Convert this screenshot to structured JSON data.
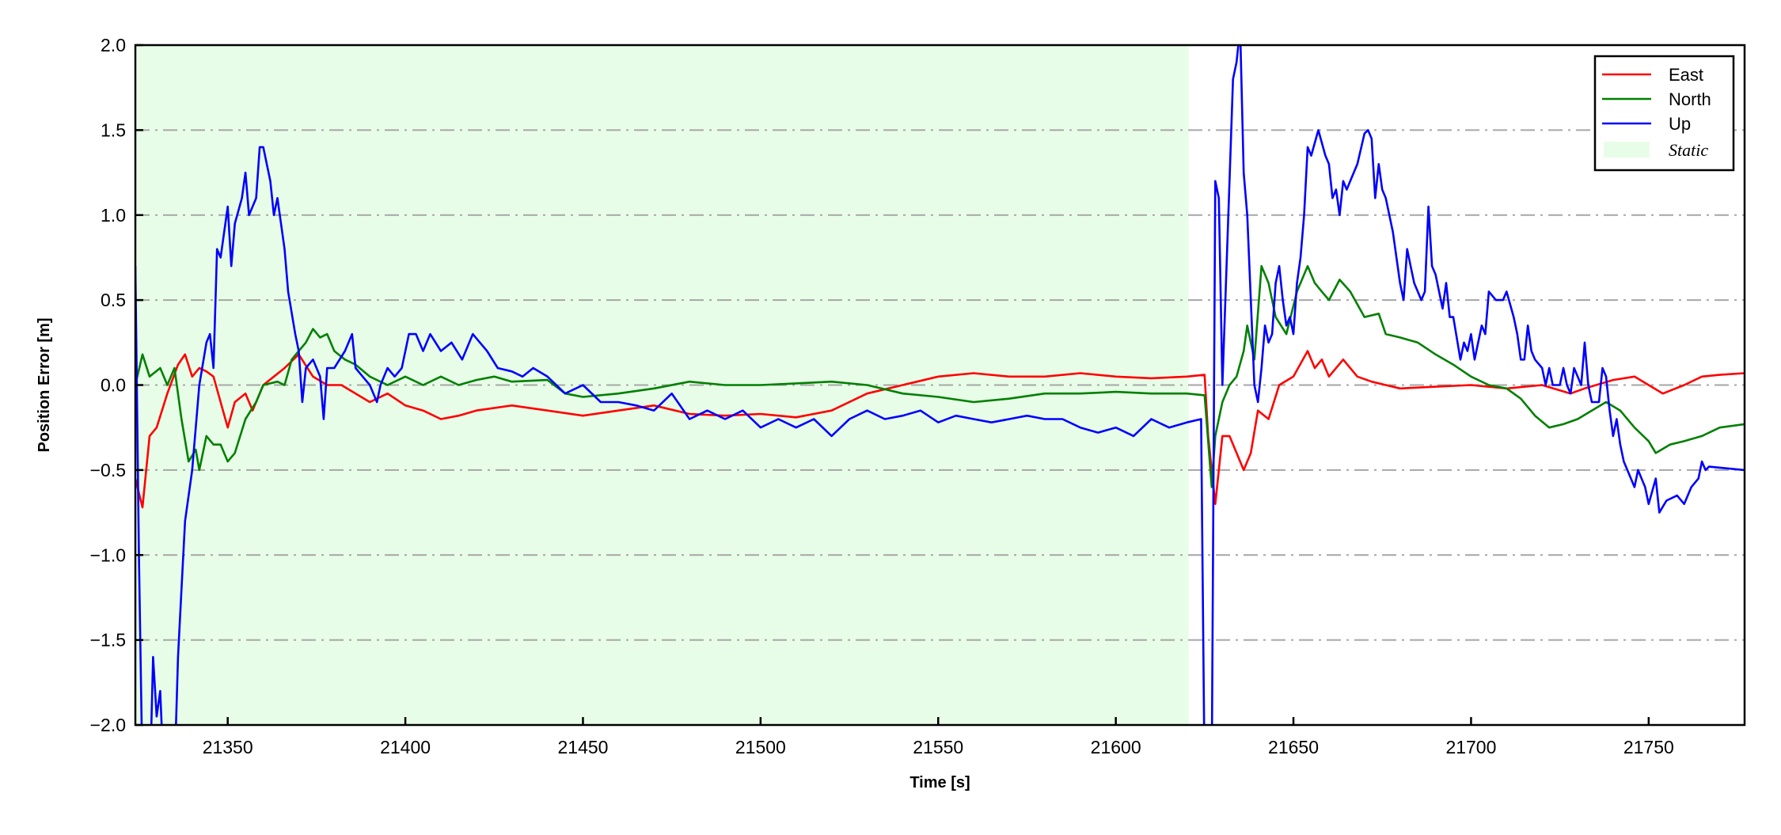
{
  "chart_data": {
    "type": "line",
    "title": "",
    "xlabel": "Time [s]",
    "ylabel": "Position Error [m]",
    "xlim": [
      21324,
      21777
    ],
    "ylim": [
      -2.0,
      2.0
    ],
    "xticks": [
      21350,
      21400,
      21450,
      21500,
      21550,
      21600,
      21650,
      21700,
      21750
    ],
    "yticks": [
      -2.0,
      -1.5,
      -1.0,
      -0.5,
      0.0,
      0.5,
      1.0,
      1.5,
      2.0
    ],
    "ytick_labels": [
      "−2.0",
      "−1.5",
      "−1.0",
      "−0.5",
      "0.0",
      "0.5",
      "1.0",
      "1.5",
      "2.0"
    ],
    "xtick_labels": [
      "21350",
      "21400",
      "21450",
      "21500",
      "21550",
      "21600",
      "21650",
      "21700",
      "21750"
    ],
    "grid": {
      "horizontal": true,
      "vertical": false,
      "style": "dash-dot",
      "color": "#a6a6a6"
    },
    "legend_placement": "top-right",
    "static_region": {
      "label": "Static",
      "x_start": 21324,
      "x_end": 21620.5,
      "color": "#e8fde8"
    },
    "series": [
      {
        "name": "East",
        "color": "#ff0000",
        "x": [
          21324,
          21326,
          21328,
          21330,
          21333,
          21336,
          21338,
          21340,
          21342,
          21344,
          21346,
          21348,
          21350,
          21352,
          21355,
          21357,
          21360,
          21363,
          21366,
          21370,
          21374,
          21378,
          21382,
          21386,
          21390,
          21395,
          21400,
          21405,
          21410,
          21415,
          21420,
          21430,
          21440,
          21450,
          21460,
          21470,
          21480,
          21490,
          21500,
          21510,
          21520,
          21530,
          21540,
          21550,
          21560,
          21570,
          21580,
          21590,
          21600,
          21610,
          21620,
          21625,
          21626,
          21628,
          21630,
          21632,
          21636,
          21638,
          21640,
          21643,
          21646,
          21650,
          21654,
          21656,
          21658,
          21660,
          21664,
          21668,
          21672,
          21676,
          21680,
          21690,
          21700,
          21710,
          21720,
          21728,
          21732,
          21740,
          21746,
          21750,
          21754,
          21760,
          21765,
          21770,
          21777
        ],
        "y": [
          -0.55,
          -0.72,
          -0.3,
          -0.25,
          -0.05,
          0.12,
          0.18,
          0.05,
          0.1,
          0.08,
          0.05,
          -0.1,
          -0.25,
          -0.1,
          -0.05,
          -0.15,
          0.0,
          0.05,
          0.1,
          0.18,
          0.05,
          0.0,
          0.0,
          -0.05,
          -0.1,
          -0.05,
          -0.12,
          -0.15,
          -0.2,
          -0.18,
          -0.15,
          -0.12,
          -0.15,
          -0.18,
          -0.15,
          -0.12,
          -0.17,
          -0.18,
          -0.17,
          -0.19,
          -0.15,
          -0.05,
          0.0,
          0.05,
          0.07,
          0.05,
          0.05,
          0.07,
          0.05,
          0.04,
          0.05,
          0.06,
          -0.3,
          -0.7,
          -0.3,
          -0.3,
          -0.5,
          -0.4,
          -0.15,
          -0.2,
          0.0,
          0.05,
          0.2,
          0.1,
          0.15,
          0.05,
          0.15,
          0.05,
          0.02,
          0.0,
          -0.02,
          -0.01,
          0.0,
          -0.02,
          0.0,
          -0.05,
          -0.02,
          0.03,
          0.05,
          0.0,
          -0.05,
          0.0,
          0.05,
          0.06,
          0.07
        ]
      },
      {
        "name": "North",
        "color": "#008000",
        "x": [
          21324,
          21326,
          21328,
          21331,
          21333,
          21335,
          21337,
          21339,
          21341,
          21342,
          21344,
          21346,
          21348,
          21350,
          21352,
          21355,
          21358,
          21360,
          21364,
          21366,
          21368,
          21370,
          21372,
          21374,
          21376,
          21378,
          21380,
          21383,
          21386,
          21390,
          21395,
          21400,
          21405,
          21410,
          21415,
          21420,
          21425,
          21430,
          21440,
          21445,
          21450,
          21460,
          21470,
          21480,
          21490,
          21500,
          21510,
          21520,
          21530,
          21540,
          21550,
          21560,
          21570,
          21580,
          21590,
          21600,
          21610,
          21620,
          21625,
          21627,
          21628,
          21630,
          21632,
          21634,
          21636,
          21637,
          21639,
          21641,
          21643,
          21645,
          21648,
          21651,
          21654,
          21656,
          21658,
          21660,
          21663,
          21666,
          21670,
          21674,
          21676,
          21680,
          21685,
          21690,
          21695,
          21700,
          21705,
          21710,
          21714,
          21718,
          21722,
          21726,
          21730,
          21734,
          21738,
          21742,
          21746,
          21750,
          21752,
          21756,
          21760,
          21765,
          21770,
          21777
        ],
        "y": [
          0.0,
          0.18,
          0.05,
          0.1,
          0.0,
          0.1,
          -0.2,
          -0.45,
          -0.38,
          -0.5,
          -0.3,
          -0.35,
          -0.35,
          -0.45,
          -0.4,
          -0.2,
          -0.1,
          0.0,
          0.02,
          0.0,
          0.15,
          0.2,
          0.25,
          0.33,
          0.28,
          0.3,
          0.2,
          0.15,
          0.12,
          0.05,
          0.0,
          0.05,
          0.0,
          0.05,
          0.0,
          0.03,
          0.05,
          0.02,
          0.03,
          -0.05,
          -0.07,
          -0.05,
          -0.02,
          0.02,
          0.0,
          0.0,
          0.01,
          0.02,
          0.0,
          -0.05,
          -0.07,
          -0.1,
          -0.08,
          -0.05,
          -0.05,
          -0.04,
          -0.05,
          -0.05,
          -0.06,
          -0.6,
          -0.3,
          -0.1,
          0.0,
          0.05,
          0.2,
          0.35,
          0.15,
          0.7,
          0.6,
          0.4,
          0.3,
          0.55,
          0.7,
          0.6,
          0.55,
          0.5,
          0.62,
          0.55,
          0.4,
          0.42,
          0.3,
          0.28,
          0.25,
          0.18,
          0.12,
          0.05,
          0.0,
          -0.02,
          -0.08,
          -0.18,
          -0.25,
          -0.23,
          -0.2,
          -0.15,
          -0.1,
          -0.15,
          -0.25,
          -0.33,
          -0.4,
          -0.35,
          -0.33,
          -0.3,
          -0.25,
          -0.23
        ]
      },
      {
        "name": "Up",
        "color": "#0000ff",
        "x": [
          21324,
          21325,
          21326,
          21328,
          21329,
          21330,
          21331,
          21332,
          21335,
          21336,
          21337,
          21338,
          21340,
          21342,
          21344,
          21345,
          21346,
          21347,
          21348,
          21350,
          21351,
          21352,
          21354,
          21355,
          21356,
          21358,
          21359,
          21360,
          21362,
          21363,
          21364,
          21366,
          21367,
          21369,
          21370,
          21371,
          21372,
          21374,
          21376,
          21377,
          21378,
          21380,
          21383,
          21385,
          21386,
          21388,
          21390,
          21392,
          21393,
          21395,
          21397,
          21399,
          21401,
          21403,
          21405,
          21407,
          21410,
          21413,
          21416,
          21419,
          21421,
          21423,
          21426,
          21430,
          21433,
          21436,
          21440,
          21445,
          21450,
          21455,
          21460,
          21465,
          21470,
          21475,
          21480,
          21485,
          21490,
          21495,
          21500,
          21505,
          21510,
          21515,
          21520,
          21525,
          21530,
          21535,
          21540,
          21545,
          21550,
          21555,
          21560,
          21565,
          21570,
          21575,
          21580,
          21585,
          21590,
          21595,
          21600,
          21605,
          21610,
          21615,
          21620,
          21624,
          21625,
          21627,
          21628,
          21629,
          21630,
          21631,
          21632,
          21633,
          21634,
          21635,
          21636,
          21637,
          21638,
          21639,
          21640,
          21641,
          21642,
          21643,
          21644,
          21645,
          21646,
          21647,
          21648,
          21649,
          21650,
          21651,
          21652,
          21653,
          21654,
          21655,
          21657,
          21659,
          21660,
          21661,
          21662,
          21663,
          21664,
          21665,
          21666,
          21668,
          21670,
          21671,
          21672,
          21673,
          21674,
          21675,
          21676,
          21678,
          21679,
          21680,
          21681,
          21682,
          21683,
          21684,
          21685,
          21686,
          21687,
          21688,
          21689,
          21690,
          21692,
          21693,
          21694,
          21695,
          21697,
          21698,
          21699,
          21700,
          21701,
          21702,
          21703,
          21704,
          21705,
          21707,
          21709,
          21710,
          21712,
          21713,
          21714,
          21715,
          21716,
          21717,
          21718,
          21720,
          21721,
          21722,
          21723,
          21725,
          21726,
          21727,
          21728,
          21729,
          21731,
          21732,
          21733,
          21734,
          21736,
          21737,
          21738,
          21739,
          21740,
          21741,
          21742,
          21743,
          21745,
          21746,
          21747,
          21749,
          21750,
          21752,
          21753,
          21755,
          21758,
          21760,
          21762,
          21764,
          21765,
          21766,
          21767,
          21777
        ],
        "y": [
          0.7,
          -1.0,
          -2.3,
          -2.4,
          -1.6,
          -1.95,
          -1.8,
          -2.3,
          -2.3,
          -1.6,
          -1.2,
          -0.8,
          -0.5,
          0.0,
          0.25,
          0.3,
          0.1,
          0.8,
          0.75,
          1.05,
          0.7,
          0.95,
          1.1,
          1.25,
          1.0,
          1.1,
          1.4,
          1.4,
          1.2,
          1.0,
          1.1,
          0.8,
          0.55,
          0.3,
          0.2,
          -0.1,
          0.1,
          0.15,
          0.05,
          -0.2,
          0.1,
          0.1,
          0.2,
          0.3,
          0.1,
          0.05,
          0.0,
          -0.1,
          0.0,
          0.1,
          0.05,
          0.1,
          0.3,
          0.3,
          0.2,
          0.3,
          0.2,
          0.25,
          0.15,
          0.3,
          0.25,
          0.2,
          0.1,
          0.08,
          0.05,
          0.1,
          0.05,
          -0.05,
          0.0,
          -0.1,
          -0.1,
          -0.12,
          -0.15,
          -0.05,
          -0.2,
          -0.15,
          -0.2,
          -0.15,
          -0.25,
          -0.2,
          -0.25,
          -0.2,
          -0.3,
          -0.2,
          -0.15,
          -0.2,
          -0.18,
          -0.15,
          -0.22,
          -0.18,
          -0.2,
          -0.22,
          -0.2,
          -0.18,
          -0.2,
          -0.2,
          -0.25,
          -0.28,
          -0.25,
          -0.3,
          -0.2,
          -0.25,
          -0.22,
          -0.2,
          -2.3,
          -2.3,
          1.2,
          1.1,
          0.0,
          0.6,
          1.2,
          1.8,
          1.9,
          2.1,
          1.25,
          1.0,
          0.5,
          0.0,
          -0.1,
          0.1,
          0.35,
          0.25,
          0.3,
          0.6,
          0.7,
          0.5,
          0.35,
          0.4,
          0.3,
          0.6,
          0.75,
          1.0,
          1.4,
          1.35,
          1.5,
          1.35,
          1.3,
          1.1,
          1.15,
          1.0,
          1.2,
          1.15,
          1.2,
          1.3,
          1.48,
          1.5,
          1.45,
          1.1,
          1.3,
          1.15,
          1.1,
          0.9,
          0.75,
          0.6,
          0.5,
          0.8,
          0.7,
          0.6,
          0.55,
          0.5,
          0.55,
          1.05,
          0.7,
          0.65,
          0.45,
          0.6,
          0.4,
          0.4,
          0.15,
          0.25,
          0.2,
          0.3,
          0.15,
          0.25,
          0.35,
          0.3,
          0.55,
          0.5,
          0.5,
          0.55,
          0.4,
          0.3,
          0.15,
          0.15,
          0.35,
          0.2,
          0.15,
          0.1,
          0.0,
          0.1,
          0.0,
          0.0,
          0.1,
          0.0,
          -0.05,
          0.1,
          0.0,
          0.25,
          0.0,
          -0.1,
          -0.1,
          0.1,
          0.05,
          -0.15,
          -0.3,
          -0.2,
          -0.35,
          -0.45,
          -0.55,
          -0.6,
          -0.5,
          -0.6,
          -0.7,
          -0.55,
          -0.75,
          -0.68,
          -0.65,
          -0.7,
          -0.6,
          -0.55,
          -0.45,
          -0.5,
          -0.48,
          -0.5
        ]
      }
    ]
  }
}
